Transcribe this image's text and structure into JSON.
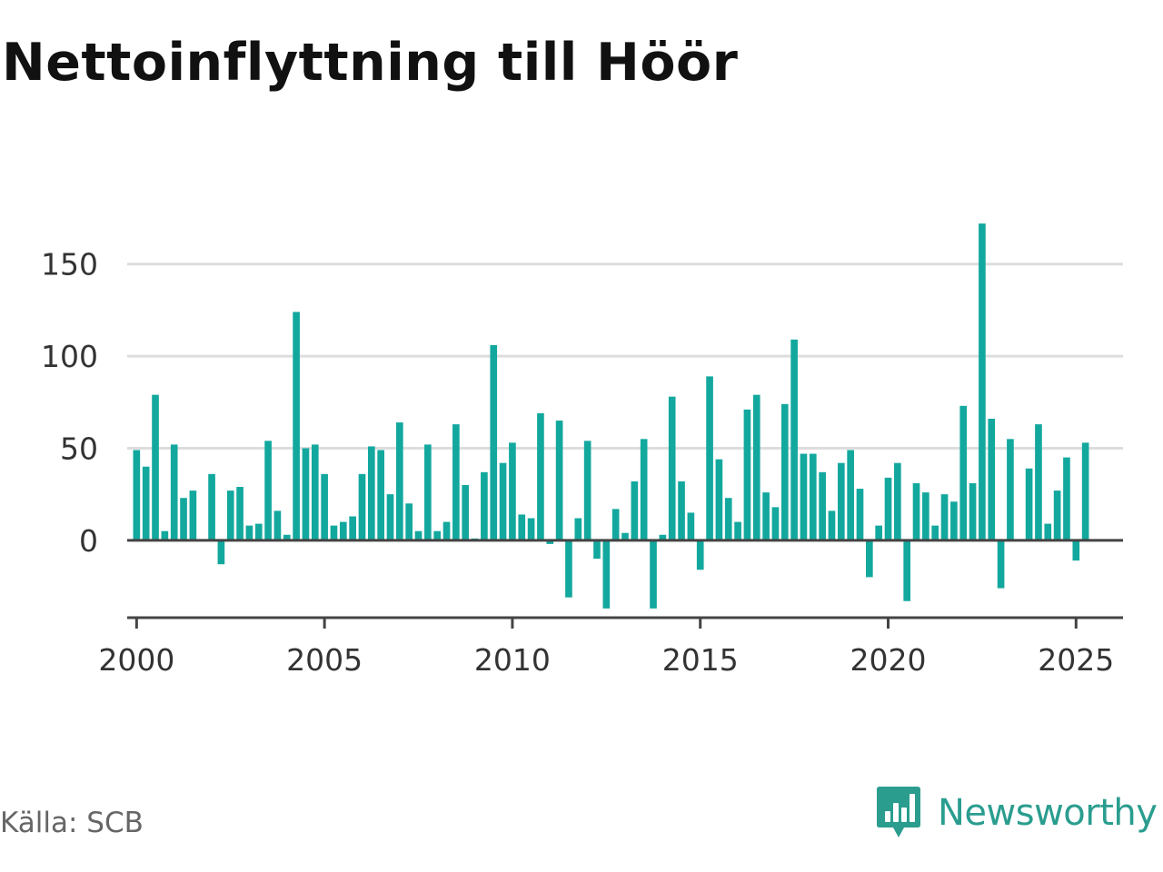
{
  "title": "Nettoinflyttning till Höör",
  "source": "Källa: SCB",
  "brand": {
    "name": "Newsworthy",
    "icon": "bar-chart-speech-bubble-icon",
    "color": "#2a9d8f"
  },
  "colors": {
    "bar": "#13a89e",
    "grid": "#dddddd",
    "axis": "#444444"
  },
  "chart_data": {
    "type": "bar",
    "title": "Nettoinflyttning till Höör",
    "xlabel": "",
    "ylabel": "",
    "x_domain": [
      1999.75,
      2026.25
    ],
    "ylim": [
      -42,
      175
    ],
    "y_ticks": [
      0,
      50,
      100,
      150
    ],
    "x_ticks": [
      2000,
      2005,
      2010,
      2015,
      2020,
      2025
    ],
    "grid": true,
    "legend": "none",
    "x": [
      2000.0,
      2000.25,
      2000.5,
      2000.75,
      2001.0,
      2001.25,
      2001.5,
      2001.75,
      2002.0,
      2002.25,
      2002.5,
      2002.75,
      2003.0,
      2003.25,
      2003.5,
      2003.75,
      2004.0,
      2004.25,
      2004.5,
      2004.75,
      2005.0,
      2005.25,
      2005.5,
      2005.75,
      2006.0,
      2006.25,
      2006.5,
      2006.75,
      2007.0,
      2007.25,
      2007.5,
      2007.75,
      2008.0,
      2008.25,
      2008.5,
      2008.75,
      2009.0,
      2009.25,
      2009.5,
      2009.75,
      2010.0,
      2010.25,
      2010.5,
      2010.75,
      2011.0,
      2011.25,
      2011.5,
      2011.75,
      2012.0,
      2012.25,
      2012.5,
      2012.75,
      2013.0,
      2013.25,
      2013.5,
      2013.75,
      2014.0,
      2014.25,
      2014.5,
      2014.75,
      2015.0,
      2015.25,
      2015.5,
      2015.75,
      2016.0,
      2016.25,
      2016.5,
      2016.75,
      2017.0,
      2017.25,
      2017.5,
      2017.75,
      2018.0,
      2018.25,
      2018.5,
      2018.75,
      2019.0,
      2019.25,
      2019.5,
      2019.75,
      2020.0,
      2020.25,
      2020.5,
      2020.75,
      2021.0,
      2021.25,
      2021.5,
      2021.75,
      2022.0,
      2022.25,
      2022.5,
      2022.75,
      2023.0,
      2023.25,
      2023.5,
      2023.75,
      2024.0,
      2024.25,
      2024.5,
      2024.75,
      2025.0,
      2025.25
    ],
    "values": [
      49,
      40,
      79,
      5,
      52,
      23,
      27,
      0,
      36,
      -13,
      27,
      29,
      8,
      9,
      54,
      16,
      3,
      124,
      50,
      52,
      36,
      8,
      10,
      13,
      36,
      51,
      49,
      25,
      64,
      20,
      5,
      52,
      5,
      10,
      63,
      30,
      1,
      37,
      106,
      42,
      53,
      14,
      12,
      69,
      -2,
      65,
      -31,
      12,
      54,
      -10,
      -37,
      17,
      4,
      32,
      55,
      -37,
      3,
      78,
      32,
      15,
      -16,
      89,
      44,
      23,
      10,
      71,
      79,
      26,
      18,
      74,
      109,
      47,
      47,
      37,
      16,
      42,
      49,
      28,
      -20,
      8,
      34,
      42,
      -33,
      31,
      26,
      8,
      25,
      21,
      73,
      31,
      172,
      66,
      -26,
      55,
      0,
      39,
      63,
      9,
      27,
      45,
      -11,
      53
    ]
  }
}
